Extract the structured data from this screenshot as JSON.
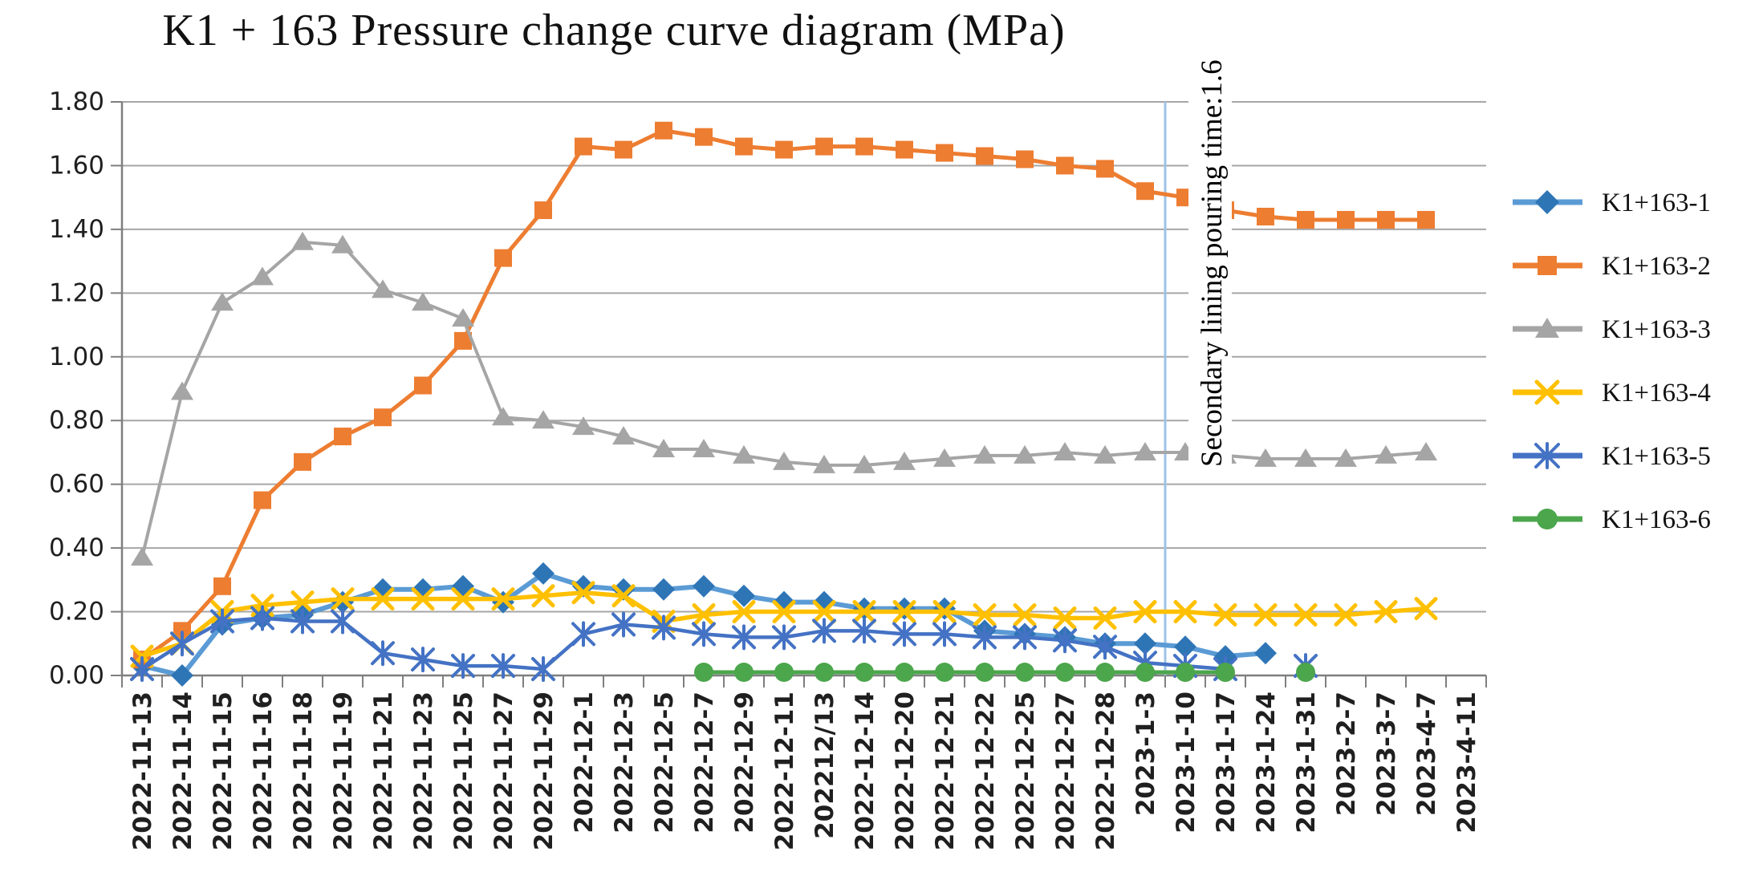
{
  "chart_data": {
    "type": "line",
    "title": "K1 + 163 Pressure change curve diagram (MPa)",
    "xlabel": "",
    "ylabel": "",
    "ylim": [
      0.0,
      1.8
    ],
    "ytick_step": 0.2,
    "y_tick_labels": [
      "0.00",
      "0.20",
      "0.40",
      "0.60",
      "0.80",
      "1.00",
      "1.20",
      "1.40",
      "1.60",
      "1.80"
    ],
    "grid": true,
    "legend_position": "right",
    "categories": [
      "2022-11-13",
      "2022-11-14",
      "2022-11-15",
      "2022-11-16",
      "2022-11-18",
      "2022-11-19",
      "2022-11-21",
      "2022-11-23",
      "2022-11-25",
      "2022-11-27",
      "2022-11-29",
      "2022-12-1",
      "2022-12-3",
      "2022-12-5",
      "2022-12-7",
      "2022-12-9",
      "2022-12-11",
      "202212/13",
      "2022-12-14",
      "2022-12-20",
      "2022-12-21",
      "2022-12-22",
      "2022-12-25",
      "2022-12-27",
      "2022-12-28",
      "2023-1-3",
      "2023-1-10",
      "2023-1-17",
      "2023-1-24",
      "2023-1-31",
      "2023-2-7",
      "2023-3-7",
      "2023-4-7",
      "2023-4-11"
    ],
    "annotation": {
      "text": "Secondary lining pouring time:1.6",
      "line_after_category": "2023-1-3",
      "line_color": "#9DC3E6"
    },
    "colors": {
      "gridline": "#A6A6A6",
      "axis": "#7F7F7F",
      "tick_label": "#1F1F1F",
      "title_text": "#111111"
    },
    "series": [
      {
        "name": "K1+163-1",
        "marker": "diamond",
        "color": "#2E75B6",
        "line_color": "#5B9BD5",
        "values": [
          0.03,
          0.0,
          0.16,
          0.18,
          0.19,
          0.23,
          0.27,
          0.27,
          0.28,
          0.23,
          0.32,
          0.28,
          0.27,
          0.27,
          0.28,
          0.25,
          0.23,
          0.23,
          0.21,
          0.21,
          0.21,
          0.14,
          0.13,
          0.12,
          0.1,
          0.1,
          0.09,
          0.06,
          0.07,
          null,
          null,
          null,
          null,
          null
        ]
      },
      {
        "name": "K1+163-2",
        "marker": "square",
        "color": "#ED7D31",
        "line_color": "#ED7D31",
        "values": [
          0.05,
          0.14,
          0.28,
          0.55,
          0.67,
          0.75,
          0.81,
          0.91,
          1.05,
          1.31,
          1.46,
          1.66,
          1.65,
          1.71,
          1.69,
          1.66,
          1.65,
          1.66,
          1.66,
          1.65,
          1.64,
          1.63,
          1.62,
          1.6,
          1.59,
          1.52,
          1.5,
          1.46,
          1.44,
          1.43,
          1.43,
          1.43,
          1.43,
          null
        ]
      },
      {
        "name": "K1+163-3",
        "marker": "triangle",
        "color": "#A5A5A5",
        "line_color": "#A5A5A5",
        "values": [
          0.37,
          0.89,
          1.17,
          1.25,
          1.36,
          1.35,
          1.21,
          1.17,
          1.12,
          0.81,
          0.8,
          0.78,
          0.75,
          0.71,
          0.71,
          0.69,
          0.67,
          0.66,
          0.66,
          0.67,
          0.68,
          0.69,
          0.69,
          0.7,
          0.69,
          0.7,
          0.7,
          0.69,
          0.68,
          0.68,
          0.68,
          0.69,
          0.7,
          null
        ]
      },
      {
        "name": "K1+163-4",
        "marker": "x",
        "color": "#FFC000",
        "line_color": "#FFC000",
        "values": [
          0.06,
          0.1,
          0.2,
          0.22,
          0.23,
          0.24,
          0.24,
          0.24,
          0.24,
          0.24,
          0.25,
          0.26,
          0.25,
          0.17,
          0.19,
          0.2,
          0.2,
          0.2,
          0.2,
          0.2,
          0.2,
          0.19,
          0.19,
          0.18,
          0.18,
          0.2,
          0.2,
          0.19,
          0.19,
          0.19,
          0.19,
          0.2,
          0.21,
          null
        ]
      },
      {
        "name": "K1+163-5",
        "marker": "asterisk",
        "color": "#4472C4",
        "line_color": "#4472C4",
        "values": [
          0.02,
          0.1,
          0.17,
          0.18,
          0.17,
          0.17,
          0.07,
          0.05,
          0.03,
          0.03,
          0.02,
          0.13,
          0.16,
          0.15,
          0.13,
          0.12,
          0.12,
          0.14,
          0.14,
          0.13,
          0.13,
          0.12,
          0.12,
          0.11,
          0.09,
          0.04,
          0.03,
          0.02,
          null,
          0.03,
          null,
          null,
          null,
          null
        ]
      },
      {
        "name": "K1+163-6",
        "marker": "circle",
        "color": "#4CA64C",
        "line_color": "#4CA64C",
        "values": [
          null,
          null,
          null,
          null,
          null,
          null,
          null,
          null,
          null,
          null,
          null,
          null,
          null,
          null,
          0.01,
          0.01,
          0.01,
          0.01,
          0.01,
          0.01,
          0.01,
          0.01,
          0.01,
          0.01,
          0.01,
          0.01,
          0.01,
          0.01,
          null,
          0.01,
          null,
          null,
          null,
          null
        ]
      }
    ]
  }
}
